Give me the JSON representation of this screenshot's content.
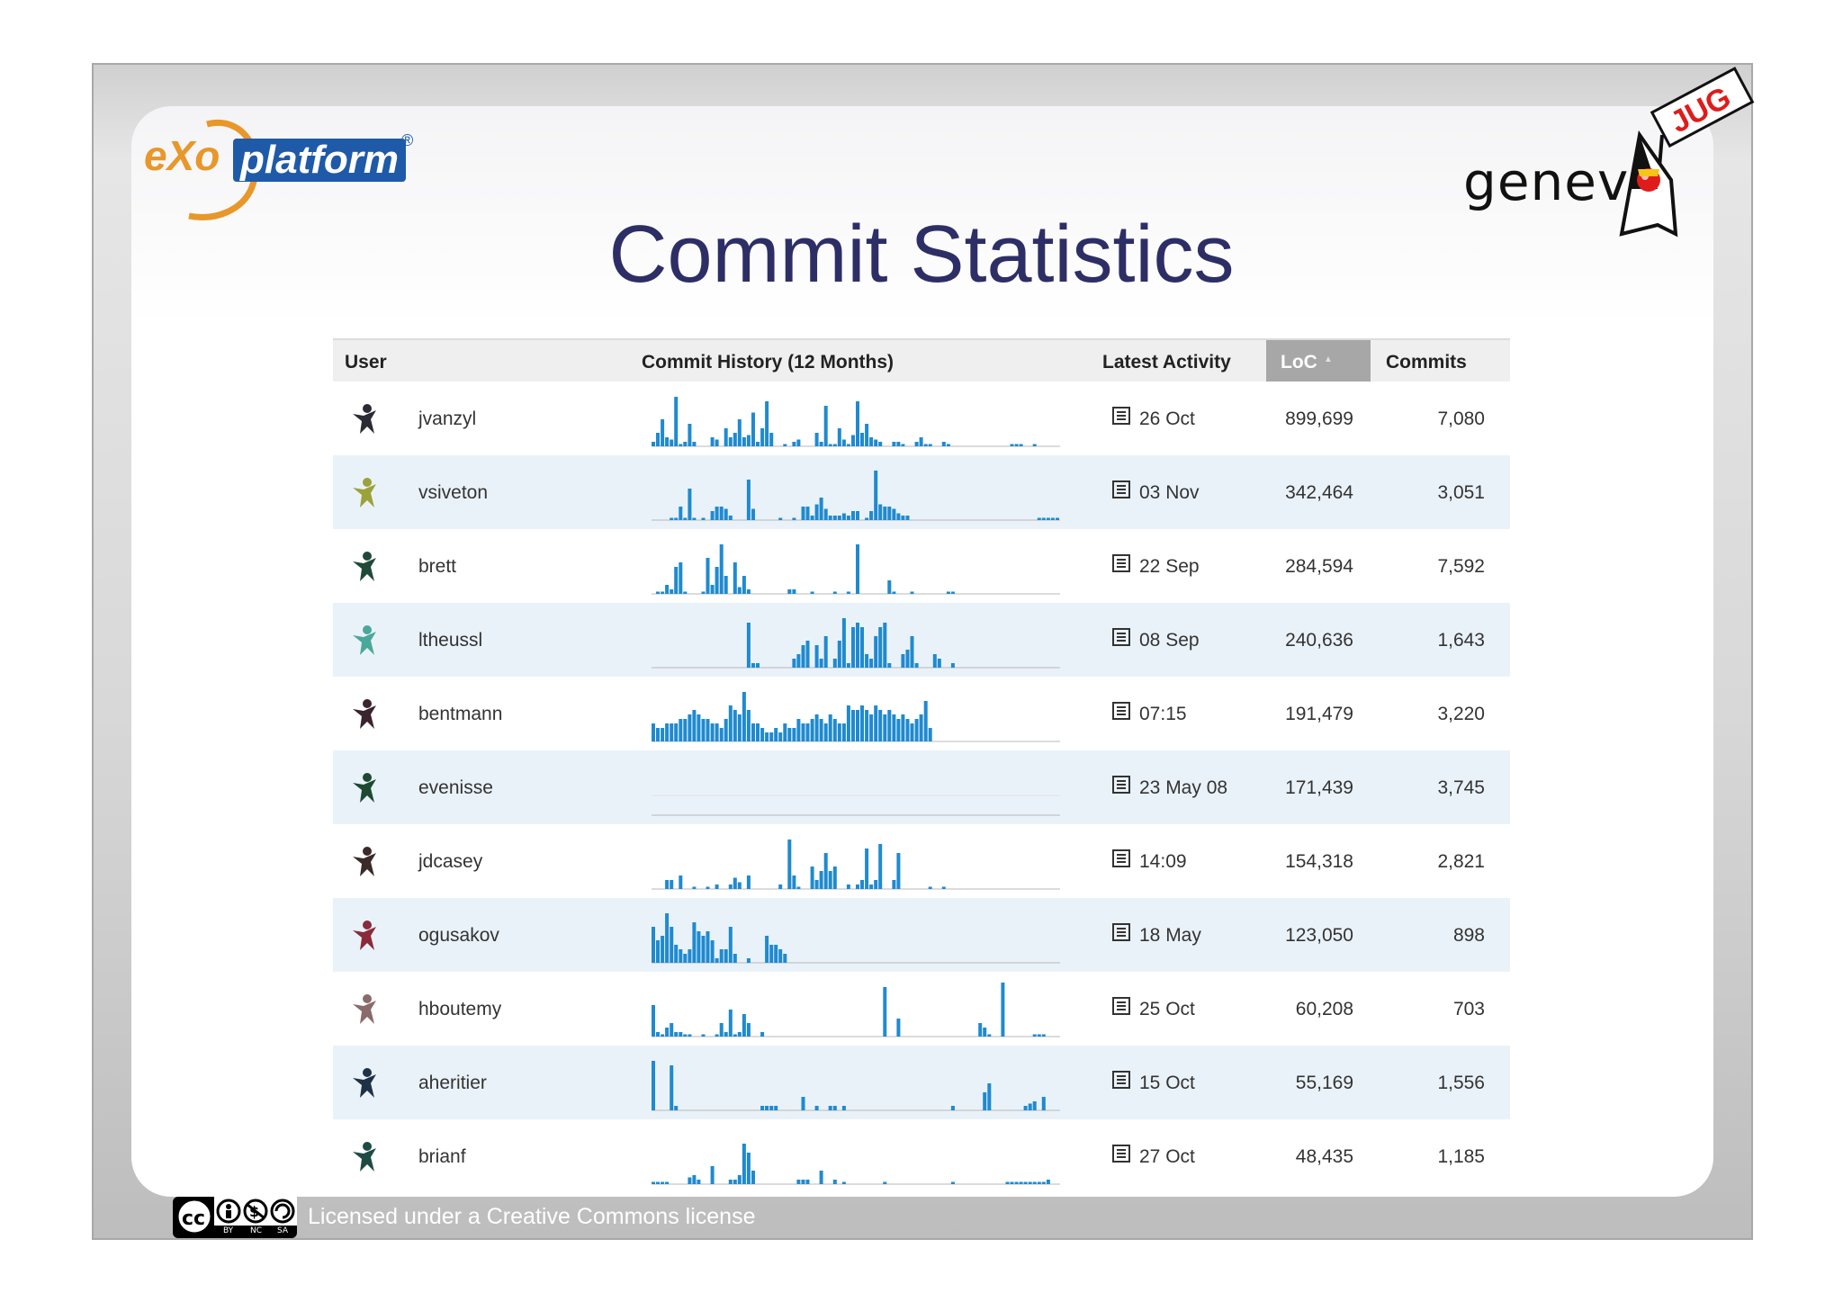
{
  "slide": {
    "title": "Commit Statistics",
    "logo_left": {
      "e": "e",
      "xo": "Xo",
      "platform": "platform",
      "reg": "®"
    },
    "logo_right": {
      "text": "genev",
      "flag": "JUG"
    },
    "footer": {
      "license": "Licensed under a Creative Commons license",
      "badge": {
        "cc": "cc",
        "by": "BY",
        "nc": "NC",
        "sa": "SA"
      }
    }
  },
  "table": {
    "headers": {
      "user": "User",
      "history": "Commit History (12 Months)",
      "activity": "Latest Activity",
      "loc": "LoC",
      "commits": "Commits"
    },
    "colors": {
      "bar": "#1f8ad0",
      "avatar_default": "#333333"
    },
    "rows": [
      {
        "user": "jvanzyl",
        "activity": "26 Oct",
        "loc": "899,699",
        "commits": "7,080",
        "avatar_color": "#2b2b33",
        "history": [
          2,
          6,
          12,
          4,
          3,
          22,
          1,
          2,
          10,
          2,
          0,
          0,
          0,
          4,
          3,
          0,
          8,
          4,
          6,
          12,
          4,
          5,
          15,
          2,
          8,
          20,
          6,
          0,
          0,
          1,
          0,
          2,
          3,
          0,
          0,
          0,
          6,
          2,
          18,
          1,
          1,
          8,
          3,
          1,
          5,
          20,
          6,
          10,
          4,
          3,
          2,
          0,
          0,
          2,
          2,
          1,
          0,
          0,
          2,
          4,
          1,
          1,
          0,
          0,
          2,
          1,
          0,
          0,
          0,
          0,
          0,
          0,
          0,
          0,
          0,
          0,
          0,
          0,
          0,
          1,
          1,
          1,
          0,
          0,
          1,
          0,
          0,
          0,
          0,
          0
        ]
      },
      {
        "user": "vsiveton",
        "activity": "03 Nov",
        "loc": "342,464",
        "commits": "3,051",
        "avatar_color": "#9aa23a",
        "history": [
          0,
          0,
          0,
          0,
          1,
          1,
          6,
          1,
          14,
          1,
          0,
          1,
          0,
          4,
          6,
          6,
          5,
          2,
          0,
          0,
          0,
          18,
          5,
          0,
          0,
          0,
          0,
          0,
          1,
          0,
          0,
          1,
          0,
          6,
          6,
          2,
          7,
          10,
          5,
          2,
          2,
          2,
          3,
          2,
          4,
          4,
          0,
          1,
          4,
          22,
          7,
          6,
          6,
          5,
          3,
          2,
          2,
          0,
          0,
          0,
          0,
          0,
          0,
          0,
          0,
          0,
          0,
          0,
          0,
          0,
          0,
          0,
          0,
          0,
          0,
          0,
          0,
          0,
          0,
          0,
          0,
          0,
          0,
          0,
          0,
          1,
          1,
          1,
          1,
          1,
          0
        ]
      },
      {
        "user": "brett",
        "activity": "22 Sep",
        "loc": "284,594",
        "commits": "7,592",
        "avatar_color": "#1f4a3a",
        "history": [
          0,
          1,
          1,
          4,
          2,
          12,
          14,
          1,
          0,
          0,
          0,
          1,
          16,
          4,
          12,
          22,
          8,
          0,
          14,
          3,
          8,
          2,
          0,
          0,
          0,
          0,
          0,
          0,
          0,
          0,
          2,
          2,
          0,
          0,
          0,
          1,
          0,
          0,
          0,
          0,
          1,
          0,
          0,
          1,
          0,
          22,
          0,
          0,
          0,
          0,
          0,
          0,
          6,
          1,
          0,
          0,
          0,
          1,
          0,
          0,
          0,
          0,
          0,
          0,
          0,
          1,
          1,
          0,
          0,
          0,
          0,
          0,
          0,
          0,
          0,
          0,
          0,
          0,
          0,
          0,
          0,
          0,
          0,
          0,
          0,
          0,
          0,
          0,
          0,
          0
        ]
      },
      {
        "user": "ltheussl",
        "activity": "08 Sep",
        "loc": "240,636",
        "commits": "1,643",
        "avatar_color": "#4aa89a",
        "history": [
          0,
          0,
          0,
          0,
          0,
          0,
          0,
          0,
          0,
          0,
          0,
          0,
          0,
          0,
          0,
          0,
          0,
          0,
          0,
          0,
          0,
          20,
          2,
          2,
          0,
          0,
          0,
          0,
          0,
          0,
          0,
          4,
          6,
          10,
          12,
          0,
          10,
          4,
          14,
          0,
          4,
          12,
          22,
          2,
          18,
          20,
          18,
          6,
          4,
          14,
          18,
          20,
          2,
          0,
          0,
          6,
          8,
          14,
          2,
          0,
          0,
          0,
          6,
          4,
          0,
          0,
          2,
          0,
          0,
          0,
          0,
          0,
          0,
          0,
          0,
          0,
          0,
          0,
          0,
          0,
          0,
          0,
          0,
          0,
          0,
          0,
          0,
          0,
          0,
          0
        ]
      },
      {
        "user": "bentmann",
        "activity": "07:15",
        "loc": "191,479",
        "commits": "3,220",
        "avatar_color": "#3a2430",
        "history": [
          8,
          6,
          6,
          8,
          8,
          8,
          10,
          10,
          12,
          14,
          12,
          10,
          10,
          8,
          8,
          6,
          10,
          16,
          14,
          12,
          22,
          14,
          8,
          8,
          6,
          4,
          4,
          6,
          4,
          8,
          6,
          6,
          10,
          8,
          8,
          10,
          12,
          10,
          8,
          12,
          10,
          8,
          8,
          16,
          14,
          14,
          16,
          14,
          12,
          16,
          14,
          12,
          14,
          12,
          10,
          12,
          10,
          8,
          10,
          12,
          18,
          6,
          0,
          0,
          0,
          0,
          0,
          0,
          0,
          0,
          0,
          0,
          0,
          0,
          0,
          0,
          0,
          0,
          0,
          0,
          0,
          0,
          0,
          0,
          0,
          0,
          0,
          0,
          0,
          0
        ]
      },
      {
        "user": "evenisse",
        "activity": "23 May 08",
        "loc": "171,439",
        "commits": "3,745",
        "avatar_color": "#1d4a30",
        "history": []
      },
      {
        "user": "jdcasey",
        "activity": "14:09",
        "loc": "154,318",
        "commits": "2,821",
        "avatar_color": "#3a2a2a",
        "history": [
          0,
          0,
          0,
          4,
          4,
          0,
          6,
          0,
          0,
          1,
          0,
          0,
          1,
          0,
          2,
          0,
          0,
          2,
          5,
          3,
          0,
          6,
          0,
          0,
          0,
          0,
          0,
          0,
          2,
          0,
          22,
          6,
          1,
          0,
          0,
          10,
          4,
          8,
          16,
          8,
          10,
          0,
          0,
          2,
          0,
          2,
          4,
          18,
          2,
          4,
          20,
          0,
          0,
          4,
          16,
          0,
          0,
          0,
          0,
          0,
          0,
          1,
          0,
          0,
          1,
          0,
          0,
          0,
          0,
          0,
          0,
          0,
          0,
          0,
          0,
          0,
          0,
          0,
          0,
          0,
          0,
          0,
          0,
          0,
          0,
          0,
          0,
          0,
          0,
          0
        ]
      },
      {
        "user": "ogusakov",
        "activity": "18 May",
        "loc": "123,050",
        "commits": "898",
        "avatar_color": "#8a2a3a",
        "history": [
          16,
          10,
          12,
          22,
          16,
          8,
          6,
          4,
          6,
          18,
          14,
          12,
          14,
          10,
          2,
          6,
          6,
          16,
          4,
          0,
          0,
          2,
          0,
          0,
          0,
          12,
          8,
          8,
          6,
          4,
          0,
          0,
          0,
          0,
          0,
          0,
          0,
          0,
          0,
          0,
          0,
          0,
          0,
          0,
          0,
          0,
          0,
          0,
          0,
          0,
          0,
          0,
          0,
          0,
          0,
          0,
          0,
          0,
          0,
          0,
          0,
          0,
          0,
          0,
          0,
          0,
          0,
          0,
          0,
          0,
          0,
          0,
          0,
          0,
          0,
          0,
          0,
          0,
          0,
          0,
          0,
          0,
          0,
          0,
          0,
          0,
          0,
          0,
          0,
          0
        ]
      },
      {
        "user": "hboutemy",
        "activity": "25 Oct",
        "loc": "60,208",
        "commits": "703",
        "avatar_color": "#8a6a6a",
        "history": [
          14,
          2,
          1,
          4,
          6,
          2,
          2,
          1,
          1,
          0,
          0,
          1,
          0,
          0,
          1,
          6,
          2,
          12,
          1,
          2,
          10,
          6,
          0,
          0,
          2,
          0,
          0,
          0,
          0,
          0,
          0,
          0,
          0,
          0,
          0,
          0,
          0,
          0,
          0,
          0,
          0,
          0,
          0,
          0,
          0,
          0,
          0,
          0,
          0,
          0,
          0,
          22,
          0,
          0,
          8,
          0,
          0,
          0,
          0,
          0,
          0,
          0,
          0,
          0,
          0,
          0,
          0,
          0,
          0,
          0,
          0,
          0,
          6,
          4,
          1,
          0,
          0,
          24,
          0,
          0,
          0,
          0,
          0,
          0,
          1,
          1,
          1,
          0,
          0,
          0
        ]
      },
      {
        "user": "aheritier",
        "activity": "15 Oct",
        "loc": "55,169",
        "commits": "1,556",
        "avatar_color": "#1e3246",
        "history": [
          22,
          0,
          0,
          0,
          20,
          2,
          0,
          0,
          0,
          0,
          0,
          0,
          0,
          0,
          0,
          0,
          0,
          0,
          0,
          0,
          0,
          0,
          0,
          0,
          2,
          2,
          2,
          2,
          0,
          0,
          0,
          0,
          0,
          6,
          0,
          0,
          2,
          0,
          0,
          2,
          2,
          0,
          2,
          0,
          0,
          0,
          0,
          0,
          0,
          0,
          0,
          0,
          0,
          0,
          0,
          0,
          0,
          0,
          0,
          0,
          0,
          0,
          0,
          0,
          0,
          0,
          2,
          0,
          0,
          0,
          0,
          0,
          0,
          8,
          12,
          0,
          0,
          0,
          0,
          0,
          0,
          0,
          2,
          3,
          4,
          0,
          6,
          0,
          0,
          0
        ]
      },
      {
        "user": "brianf",
        "activity": "27 Oct",
        "loc": "48,435",
        "commits": "1,185",
        "avatar_color": "#1e4a44",
        "history": [
          1,
          1,
          1,
          1,
          0,
          0,
          0,
          0,
          3,
          4,
          2,
          0,
          0,
          8,
          0,
          0,
          0,
          2,
          2,
          4,
          18,
          14,
          6,
          0,
          0,
          0,
          0,
          0,
          0,
          0,
          0,
          0,
          2,
          2,
          2,
          0,
          0,
          6,
          0,
          0,
          2,
          0,
          1,
          0,
          0,
          0,
          0,
          0,
          0,
          0,
          0,
          1,
          0,
          0,
          0,
          0,
          0,
          0,
          0,
          0,
          0,
          0,
          0,
          0,
          0,
          0,
          1,
          0,
          0,
          0,
          0,
          0,
          0,
          0,
          0,
          0,
          0,
          0,
          1,
          1,
          1,
          1,
          1,
          1,
          1,
          1,
          1,
          2,
          0,
          0
        ]
      }
    ]
  }
}
